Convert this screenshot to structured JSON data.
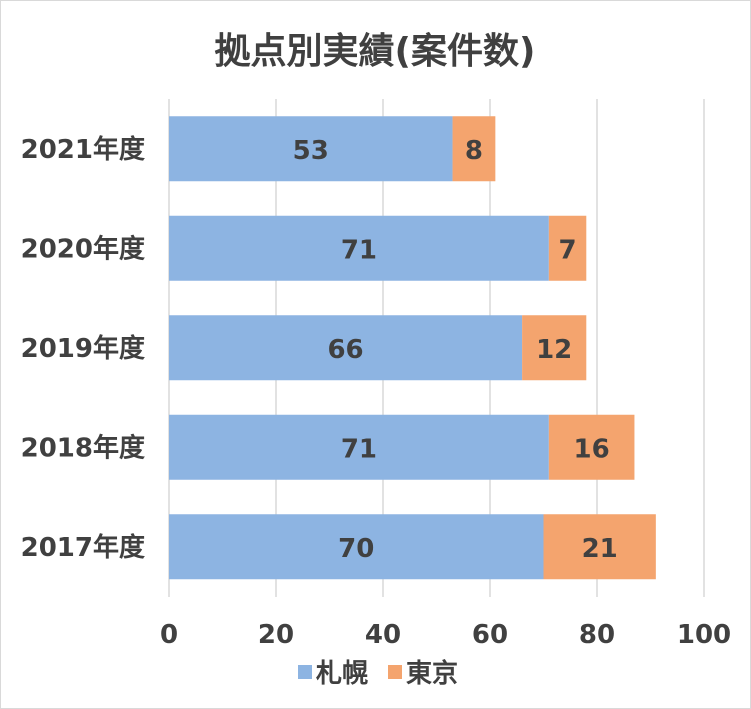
{
  "chart_data": {
    "type": "bar",
    "orientation": "horizontal",
    "stacked": true,
    "title": "拠点別実績(案件数)",
    "xlabel": "",
    "ylabel": "",
    "categories": [
      "2021年度",
      "2020年度",
      "2019年度",
      "2018年度",
      "2017年度"
    ],
    "series": [
      {
        "name": "札幌",
        "color": "#8db4e2",
        "values": [
          53,
          71,
          66,
          71,
          70
        ]
      },
      {
        "name": "東京",
        "color": "#f4a46e",
        "values": [
          8,
          7,
          12,
          16,
          21
        ]
      }
    ],
    "xlim": [
      0,
      100
    ],
    "xticks": [
      0,
      20,
      40,
      60,
      80,
      100
    ],
    "grid": true,
    "legend_position": "bottom"
  }
}
